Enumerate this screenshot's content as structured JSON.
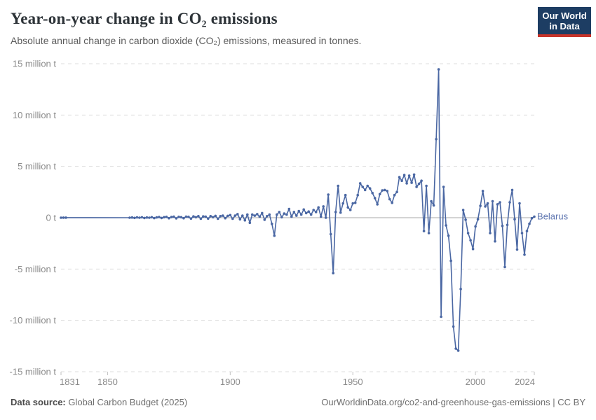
{
  "header": {
    "title": "Year-on-year change in CO₂ emissions",
    "subtitle": "Absolute annual change in carbon dioxide (CO₂) emissions, measured in tonnes.",
    "logo": {
      "line1": "Our World",
      "line2": "in Data"
    }
  },
  "chart_data": {
    "type": "line",
    "title": "Year-on-year change in CO₂ emissions",
    "unit": "million tonnes",
    "entity": "Belarus",
    "line_color": "#4a67a3",
    "label_color": "#6077b1",
    "grid": "dashed horizontal gridlines, solid zero line",
    "legend_position": "end-of-line label",
    "x": {
      "min": 1831,
      "max": 2024,
      "ticks": [
        1831,
        1850,
        1900,
        1950,
        2000,
        2024
      ]
    },
    "y": {
      "min": -15,
      "max": 15,
      "ticks": [
        15,
        10,
        5,
        0,
        -5,
        -10,
        -15
      ],
      "tick_labels": [
        "15 million t",
        "10 million t",
        "5 million t",
        "0 t",
        "-5 million t",
        "-10 million t",
        "-15 million t"
      ]
    },
    "series": [
      {
        "name": "Belarus",
        "segments": [
          {
            "start_year": 1831,
            "values": [
              0,
              0.01,
              0.01
            ]
          },
          {
            "start_year": 1859,
            "values": [
              0.0,
              0.02,
              -0.02,
              0.03,
              0.0,
              0.04,
              -0.03,
              0.02,
              0.0,
              0.05,
              -0.04,
              0.03,
              0.06,
              -0.03,
              0.05,
              0.08,
              -0.05,
              0.06,
              0.1,
              -0.06,
              0.08,
              0.05,
              -0.05,
              0.1,
              0.08,
              -0.08,
              0.12,
              0.05,
              0.15,
              -0.1,
              0.12,
              0.1,
              -0.08,
              0.15,
              0.05,
              0.18,
              -0.1,
              0.15,
              0.2,
              -0.05,
              0.18,
              0.25,
              -0.1,
              0.2,
              0.35,
              -0.15,
              0.2,
              -0.25,
              0.3,
              -0.5,
              0.3,
              0.2,
              0.35,
              0.1,
              0.45,
              -0.2,
              0.15,
              0.3,
              -0.6,
              -1.75,
              0.3,
              0.55,
              0.05,
              0.4,
              0.3,
              0.85,
              0.1,
              0.55,
              0.2,
              0.65,
              0.3,
              0.8,
              0.45,
              0.6,
              0.3,
              0.75,
              0.55,
              1.0,
              0.1,
              1.1,
              0.0,
              2.25,
              -1.6,
              -5.4,
              0.55,
              3.1,
              0.5,
              1.4,
              2.2,
              1.0,
              0.75,
              1.4,
              1.45,
              2.2,
              3.35,
              3.0,
              2.7,
              3.1,
              2.85,
              2.4,
              1.9,
              1.3,
              2.3,
              2.65,
              2.7,
              2.6,
              1.8,
              1.45,
              2.2,
              2.5,
              3.95,
              3.6,
              4.15,
              3.35,
              4.1,
              3.4,
              4.2,
              3.0,
              3.3,
              3.6,
              -1.3,
              3.1,
              -1.5,
              1.6,
              1.2,
              7.65,
              14.45,
              -9.65,
              3.0,
              -0.75,
              -1.75,
              -4.2,
              -10.6,
              -12.75,
              -12.95,
              -6.95,
              0.75,
              -0.2,
              -1.5,
              -2.2,
              -3.05,
              -0.85,
              -0.15,
              1.15,
              2.6,
              1.1,
              1.4,
              -1.5,
              1.6,
              -2.3,
              1.3,
              1.5,
              -0.8,
              -4.8,
              -0.7,
              1.5,
              2.7,
              -0.15,
              -3.1,
              1.4,
              -1.5,
              -3.6,
              -1.3,
              -0.6,
              -0.05,
              0.1
            ]
          }
        ]
      }
    ]
  },
  "footer": {
    "source_label": "Data source:",
    "source_text": " Global Carbon Budget (2025)",
    "right_text": "OurWorldinData.org/co2-and-greenhouse-gas-emissions | CC BY"
  }
}
